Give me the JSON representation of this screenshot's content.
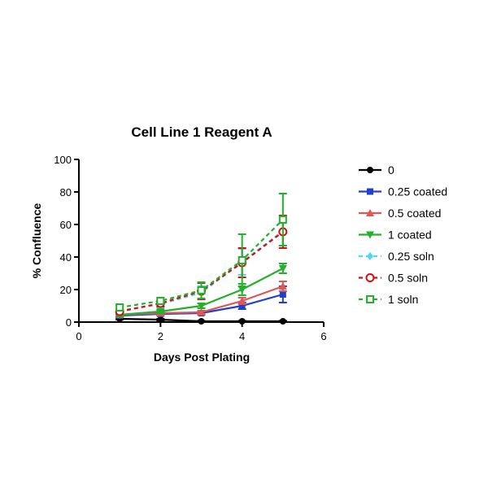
{
  "chart_data": {
    "type": "line",
    "title": "Cell  Line 1 Reagent A",
    "xlabel": "Days Post Plating",
    "ylabel": "% Confluence",
    "xlim": [
      0,
      6
    ],
    "ylim": [
      0,
      100
    ],
    "xticks": [
      0,
      2,
      4,
      6
    ],
    "yticks": [
      0,
      20,
      40,
      60,
      80,
      100
    ],
    "grid": false,
    "legend_position": "right",
    "x": [
      1,
      2,
      3,
      4,
      5
    ],
    "series": [
      {
        "name": "0",
        "color": "#000000",
        "marker": "circle-filled",
        "dash": false,
        "values": [
          2,
          1.5,
          0.5,
          0.5,
          0.5
        ],
        "errors": [
          0.5,
          0.5,
          0.3,
          0.3,
          0.3
        ]
      },
      {
        "name": "0.25 coated",
        "color": "#1f3fd1",
        "marker": "square-filled",
        "dash": false,
        "values": [
          4,
          5,
          5.5,
          10,
          17
        ],
        "errors": [
          0.8,
          1,
          1,
          2,
          5
        ]
      },
      {
        "name": "0.5 coated",
        "color": "#e05555",
        "marker": "triangle-up-filled",
        "dash": false,
        "values": [
          4.5,
          5.5,
          6,
          13,
          22
        ],
        "errors": [
          0.8,
          1,
          1,
          2,
          3
        ]
      },
      {
        "name": "1 coated",
        "color": "#22b02d",
        "marker": "triangle-down-filled",
        "dash": false,
        "values": [
          4.5,
          6.5,
          10,
          20,
          33
        ],
        "errors": [
          1,
          1,
          1.5,
          3.5,
          3
        ]
      },
      {
        "name": "0.25 soln",
        "color": "#4fd8f0",
        "marker": "diamond-filled",
        "dash": true,
        "values": [
          7,
          11,
          18,
          37,
          56
        ],
        "errors": [
          1,
          2,
          4,
          8,
          9
        ]
      },
      {
        "name": "0.5 soln",
        "color": "#d01010",
        "marker": "circle-open",
        "dash": true,
        "values": [
          6.5,
          11.5,
          19,
          36.5,
          55.5
        ],
        "errors": [
          1,
          2,
          5,
          9,
          10
        ]
      },
      {
        "name": "1 soln",
        "color": "#22b02d",
        "marker": "square-open",
        "dash": true,
        "values": [
          9,
          13,
          19.5,
          38,
          63
        ],
        "errors": [
          1.5,
          2,
          5,
          16,
          16
        ]
      }
    ]
  }
}
